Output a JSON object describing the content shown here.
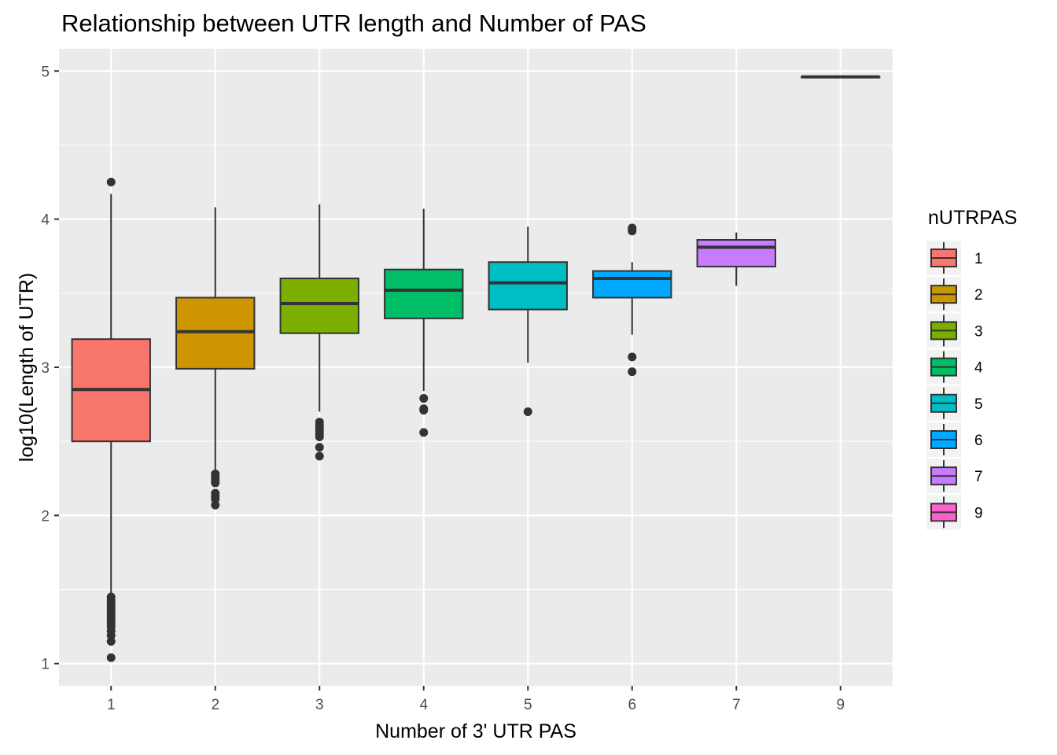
{
  "chart_data": {
    "type": "boxplot",
    "title": "Relationship between UTR length and Number of PAS",
    "xlabel": "Number of 3' UTR PAS",
    "ylabel": "log10(Length of UTR)",
    "categories": [
      "1",
      "2",
      "3",
      "4",
      "5",
      "6",
      "7",
      "9"
    ],
    "y_ticks": [
      "1",
      "2",
      "3",
      "4",
      "5"
    ],
    "ylim": [
      0.85,
      5.15
    ],
    "grid": true,
    "legend": {
      "title": "nUTRPAS",
      "position": "right",
      "labels": [
        "1",
        "2",
        "3",
        "4",
        "5",
        "6",
        "7",
        "9"
      ]
    },
    "colors": [
      "#F8766D",
      "#CD9600",
      "#7CAE00",
      "#00BE67",
      "#00BFC4",
      "#00A9FF",
      "#C77CFF",
      "#FF61CC"
    ],
    "boxes": [
      {
        "category": "1",
        "whisker_low": 1.45,
        "q1": 2.5,
        "median": 2.85,
        "q3": 3.19,
        "whisker_high": 4.17,
        "outliers": [
          4.25,
          1.45,
          1.43,
          1.41,
          1.39,
          1.37,
          1.35,
          1.33,
          1.31,
          1.29,
          1.27,
          1.25,
          1.22,
          1.19,
          1.15,
          1.04
        ]
      },
      {
        "category": "2",
        "whisker_low": 2.3,
        "q1": 2.99,
        "median": 3.24,
        "q3": 3.47,
        "whisker_high": 4.08,
        "outliers": [
          2.28,
          2.26,
          2.24,
          2.22,
          2.15,
          2.13,
          2.11,
          2.07
        ]
      },
      {
        "category": "3",
        "whisker_low": 2.7,
        "q1": 3.23,
        "median": 3.43,
        "q3": 3.6,
        "whisker_high": 4.1,
        "outliers": [
          2.63,
          2.61,
          2.59,
          2.57,
          2.55,
          2.53,
          2.46,
          2.4
        ]
      },
      {
        "category": "4",
        "whisker_low": 2.84,
        "q1": 3.33,
        "median": 3.52,
        "q3": 3.66,
        "whisker_high": 4.07,
        "outliers": [
          2.79,
          2.72,
          2.71,
          2.56
        ]
      },
      {
        "category": "5",
        "whisker_low": 3.03,
        "q1": 3.39,
        "median": 3.57,
        "q3": 3.71,
        "whisker_high": 3.95,
        "outliers": [
          2.7
        ]
      },
      {
        "category": "6",
        "whisker_low": 3.22,
        "q1": 3.47,
        "median": 3.6,
        "q3": 3.65,
        "whisker_high": 3.71,
        "outliers": [
          3.94,
          3.92,
          3.07,
          2.97
        ]
      },
      {
        "category": "7",
        "whisker_low": 3.55,
        "q1": 3.68,
        "median": 3.81,
        "q3": 3.86,
        "whisker_high": 3.91,
        "outliers": []
      },
      {
        "category": "9",
        "whisker_low": 4.96,
        "q1": 4.96,
        "median": 4.96,
        "q3": 4.96,
        "whisker_high": 4.96,
        "outliers": []
      }
    ]
  }
}
